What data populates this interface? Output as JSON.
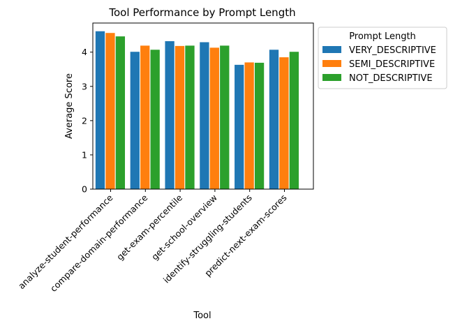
{
  "chart_data": {
    "type": "bar",
    "title": "Tool Performance by Prompt Length",
    "xlabel": "Tool",
    "ylabel": "Average Score",
    "ylim": [
      0,
      4.85
    ],
    "yticks": [
      0,
      1,
      2,
      3,
      4
    ],
    "grid": false,
    "legend": {
      "title": "Prompt Length",
      "placement": "outside-upper-right"
    },
    "categories": [
      "analyze-student-performance",
      "compare-domain-performance",
      "get-exam-percentile",
      "get-school-overview",
      "identify-struggling-students",
      "predict-next-exam-scores"
    ],
    "series": [
      {
        "name": "VERY_DESCRIPTIVE",
        "color": "#1f77b4",
        "values": [
          4.61,
          4.01,
          4.32,
          4.29,
          3.63,
          4.07
        ]
      },
      {
        "name": "SEMI_DESCRIPTIVE",
        "color": "#ff7f0e",
        "values": [
          4.56,
          4.19,
          4.18,
          4.13,
          3.7,
          3.85
        ]
      },
      {
        "name": "NOT_DESCRIPTIVE",
        "color": "#2ca02c",
        "values": [
          4.46,
          4.07,
          4.19,
          4.19,
          3.69,
          4.01
        ]
      }
    ]
  }
}
